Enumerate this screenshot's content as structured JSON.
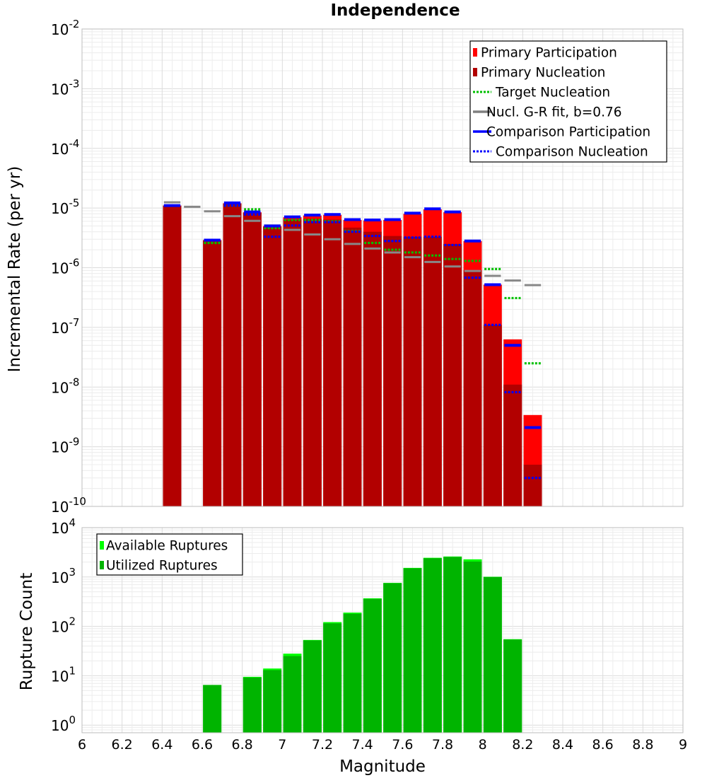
{
  "chart_data": [
    {
      "type": "bar",
      "title": "Independence",
      "xlabel": "",
      "ylabel": "Incremental Rate (per yr)",
      "xlim": [
        6,
        9
      ],
      "ylim": [
        1e-10,
        0.01
      ],
      "yscale": "log",
      "grid": true,
      "legend_position": "top-right",
      "bin_width": 0.1,
      "y_tick_exponents": [
        -10,
        -9,
        -8,
        -7,
        -6,
        -5,
        -4,
        -3,
        -2
      ],
      "legend": [
        {
          "label": "Primary Participation",
          "style": "bar",
          "color": "#ff0000"
        },
        {
          "label": "Primary Nucleation",
          "style": "bar",
          "color": "#b20000"
        },
        {
          "label": "Target Nucleation",
          "style": "dotted",
          "color": "#00c000"
        },
        {
          "label": "Nucl. G-R fit, b=0.76",
          "style": "solid",
          "color": "#808080"
        },
        {
          "label": "Comparison Participation",
          "style": "solid",
          "color": "#0000ff"
        },
        {
          "label": "Comparison Nucleation",
          "style": "dotted",
          "color": "#0000ff"
        }
      ],
      "x": [
        6.45,
        6.55,
        6.65,
        6.75,
        6.85,
        6.95,
        7.05,
        7.15,
        7.25,
        7.35,
        7.45,
        7.55,
        7.65,
        7.75,
        7.85,
        7.95,
        8.05,
        8.15,
        8.25
      ],
      "series": [
        {
          "name": "Primary Participation",
          "color": "#ff0000",
          "values": [
            1.1e-05,
            null,
            2.9e-06,
            1.2e-05,
            8.5e-06,
            5e-06,
            7e-06,
            7.5e-06,
            7.7e-06,
            6.3e-06,
            6.2e-06,
            6.3e-06,
            8e-06,
            9.5e-06,
            8.5e-06,
            2.8e-06,
            5.2e-07,
            6.3e-08,
            3.4e-09
          ]
        },
        {
          "name": "Primary Nucleation",
          "color": "#b20000",
          "values": [
            1.1e-05,
            null,
            2.9e-06,
            1.2e-05,
            8.3e-06,
            4.8e-06,
            6.4e-06,
            6.6e-06,
            6.4e-06,
            4.7e-06,
            4e-06,
            3.4e-06,
            3.3e-06,
            3.3e-06,
            2.5e-06,
            9e-07,
            1.1e-07,
            1.1e-08,
            5e-10
          ]
        },
        {
          "name": "Target Nucleation",
          "color": "#00c000",
          "values": [
            1.1e-05,
            null,
            2.6e-06,
            1.1e-05,
            9.5e-06,
            4.6e-06,
            6.3e-06,
            6.3e-06,
            6e-06,
            4.1e-06,
            2.6e-06,
            2e-06,
            1.8e-06,
            1.6e-06,
            1.4e-06,
            1.3e-06,
            9.5e-07,
            3.1e-07,
            2.5e-08
          ]
        },
        {
          "name": "Nucl. G-R fit, b=0.76",
          "color": "#808080",
          "values": [
            1.25e-05,
            1.05e-05,
            8.8e-06,
            7.3e-06,
            6.1e-06,
            5.1e-06,
            4.3e-06,
            3.6e-06,
            3e-06,
            2.5e-06,
            2.1e-06,
            1.8e-06,
            1.5e-06,
            1.25e-06,
            1.05e-06,
            8.8e-07,
            7.3e-07,
            6.1e-07,
            5.1e-07
          ]
        },
        {
          "name": "Comparison Participation",
          "color": "#0000ff",
          "values": [
            1.1e-05,
            null,
            2.9e-06,
            1.22e-05,
            8.6e-06,
            5e-06,
            7.1e-06,
            7.6e-06,
            7.8e-06,
            6.4e-06,
            6.3e-06,
            6.4e-06,
            8.2e-06,
            9.7e-06,
            8.6e-06,
            2.8e-06,
            5.2e-07,
            5e-08,
            2.1e-09
          ]
        },
        {
          "name": "Comparison Nucleation",
          "color": "#0000ff",
          "values": [
            1.1e-05,
            null,
            2.9e-06,
            1.1e-05,
            7.8e-06,
            3.3e-06,
            5.1e-06,
            5.8e-06,
            5.8e-06,
            4e-06,
            3.4e-06,
            2.8e-06,
            3.2e-06,
            3.3e-06,
            2.4e-06,
            6.8e-07,
            1.1e-07,
            8.2e-09,
            3e-10
          ]
        }
      ]
    },
    {
      "type": "bar",
      "title": "",
      "xlabel": "Magnitude",
      "ylabel": "Rupture Count",
      "xlim": [
        6,
        9
      ],
      "ylim": [
        0.7,
        10000
      ],
      "yscale": "log",
      "grid": true,
      "legend_position": "top-left",
      "bin_width": 0.1,
      "y_tick_exponents": [
        0,
        1,
        2,
        3,
        4
      ],
      "x_ticks": [
        "6",
        "6.2",
        "6.4",
        "6.6",
        "6.8",
        "7",
        "7.2",
        "7.4",
        "7.6",
        "7.8",
        "8",
        "8.2",
        "8.4",
        "8.6",
        "8.8",
        "9"
      ],
      "legend": [
        {
          "label": "Available Ruptures",
          "style": "bar",
          "color": "#00ff00"
        },
        {
          "label": "Utilized Ruptures",
          "style": "bar",
          "color": "#00b400"
        }
      ],
      "x": [
        6.65,
        6.75,
        6.85,
        6.95,
        7.05,
        7.15,
        7.25,
        7.35,
        7.45,
        7.55,
        7.65,
        7.75,
        7.85,
        7.95,
        8.05,
        8.15
      ],
      "series": [
        {
          "name": "Available Ruptures",
          "color": "#00ff00",
          "values": [
            6.5,
            null,
            9.5,
            14,
            28,
            53,
            122,
            190,
            370,
            760,
            1530,
            2450,
            2600,
            2280,
            1010,
            55
          ]
        },
        {
          "name": "Utilized Ruptures",
          "color": "#00b400",
          "values": [
            6.5,
            null,
            9.2,
            13,
            25,
            52,
            115,
            180,
            360,
            750,
            1500,
            2400,
            2550,
            2050,
            1000,
            54
          ]
        }
      ]
    }
  ]
}
